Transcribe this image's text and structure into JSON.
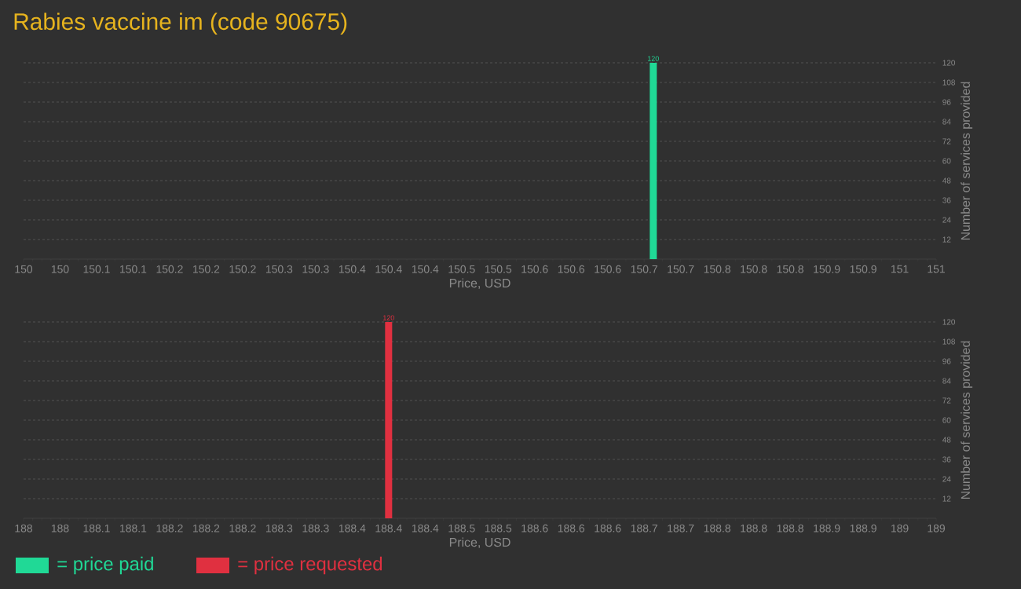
{
  "chart_data": [
    {
      "type": "bar",
      "title": "Rabies vaccine im (code 90675)",
      "xlabel": "Price, USD",
      "ylabel": "Number of services provided",
      "x": [
        150.69
      ],
      "series": [
        {
          "name": "= price paid",
          "color": "#20d996",
          "values": [
            120
          ]
        }
      ],
      "xlim": [
        150,
        151
      ],
      "xticks": [
        {
          "value": 150,
          "label": "150"
        },
        {
          "value": 150.04,
          "label": "150"
        },
        {
          "value": 150.08,
          "label": "150.1"
        },
        {
          "value": 150.12,
          "label": "150.1"
        },
        {
          "value": 150.16,
          "label": "150.2"
        },
        {
          "value": 150.2,
          "label": "150.2"
        },
        {
          "value": 150.24,
          "label": "150.2"
        },
        {
          "value": 150.28,
          "label": "150.3"
        },
        {
          "value": 150.32,
          "label": "150.3"
        },
        {
          "value": 150.36,
          "label": "150.4"
        },
        {
          "value": 150.4,
          "label": "150.4"
        },
        {
          "value": 150.44,
          "label": "150.4"
        },
        {
          "value": 150.48,
          "label": "150.5"
        },
        {
          "value": 150.52,
          "label": "150.5"
        },
        {
          "value": 150.56,
          "label": "150.6"
        },
        {
          "value": 150.6,
          "label": "150.6"
        },
        {
          "value": 150.64,
          "label": "150.6"
        },
        {
          "value": 150.68,
          "label": "150.7"
        },
        {
          "value": 150.72,
          "label": "150.7"
        },
        {
          "value": 150.76,
          "label": "150.8"
        },
        {
          "value": 150.8,
          "label": "150.8"
        },
        {
          "value": 150.84,
          "label": "150.8"
        },
        {
          "value": 150.88,
          "label": "150.9"
        },
        {
          "value": 150.92,
          "label": "150.9"
        },
        {
          "value": 150.96,
          "label": "151"
        },
        {
          "value": 151,
          "label": "151"
        }
      ],
      "ylim": [
        0,
        120
      ],
      "yticks": [
        12,
        24,
        36,
        48,
        60,
        72,
        84,
        96,
        108,
        120
      ],
      "grid": "y",
      "legend": "bottom left",
      "data_labels": true
    },
    {
      "type": "bar",
      "xlabel": "Price, USD",
      "ylabel": "Number of services provided",
      "x": [
        188.4
      ],
      "series": [
        {
          "name": "= price requested",
          "color": "#e03040",
          "values": [
            120
          ]
        }
      ],
      "xlim": [
        188,
        189
      ],
      "xticks": [
        {
          "value": 188,
          "label": "188"
        },
        {
          "value": 188.04,
          "label": "188"
        },
        {
          "value": 188.08,
          "label": "188.1"
        },
        {
          "value": 188.12,
          "label": "188.1"
        },
        {
          "value": 188.16,
          "label": "188.2"
        },
        {
          "value": 188.2,
          "label": "188.2"
        },
        {
          "value": 188.24,
          "label": "188.2"
        },
        {
          "value": 188.28,
          "label": "188.3"
        },
        {
          "value": 188.32,
          "label": "188.3"
        },
        {
          "value": 188.36,
          "label": "188.4"
        },
        {
          "value": 188.4,
          "label": "188.4"
        },
        {
          "value": 188.44,
          "label": "188.4"
        },
        {
          "value": 188.48,
          "label": "188.5"
        },
        {
          "value": 188.52,
          "label": "188.5"
        },
        {
          "value": 188.56,
          "label": "188.6"
        },
        {
          "value": 188.6,
          "label": "188.6"
        },
        {
          "value": 188.64,
          "label": "188.6"
        },
        {
          "value": 188.68,
          "label": "188.7"
        },
        {
          "value": 188.72,
          "label": "188.7"
        },
        {
          "value": 188.76,
          "label": "188.8"
        },
        {
          "value": 188.8,
          "label": "188.8"
        },
        {
          "value": 188.84,
          "label": "188.8"
        },
        {
          "value": 188.88,
          "label": "188.9"
        },
        {
          "value": 188.92,
          "label": "188.9"
        },
        {
          "value": 188.96,
          "label": "189"
        },
        {
          "value": 189,
          "label": "189"
        }
      ],
      "ylim": [
        0,
        120
      ],
      "yticks": [
        12,
        24,
        36,
        48,
        60,
        72,
        84,
        96,
        108,
        120
      ],
      "grid": "y",
      "legend": "bottom left",
      "data_labels": true
    }
  ]
}
